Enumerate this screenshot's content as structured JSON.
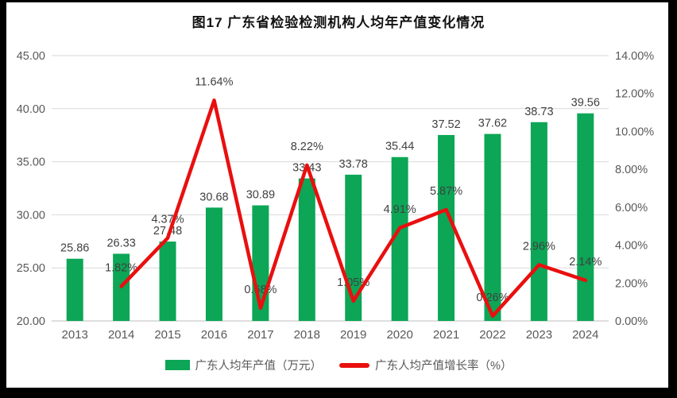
{
  "window": {
    "title": "图17  广东省检验检测机构人均年产值变化情况"
  },
  "colors": {
    "bar": "#0ca656",
    "line": "#e90f0f",
    "grid": "#d9d9d9",
    "axis_line": "#bfbfbf",
    "axis_text": "#595959",
    "label_text": "#404040",
    "frame": "#000000",
    "background": "#ffffff"
  },
  "chart_data": {
    "type": "bar",
    "subtype": "combo-bar-line",
    "title": "图17  广东省检验检测机构人均年产值变化情况",
    "categories": [
      "2013",
      "2014",
      "2015",
      "2016",
      "2017",
      "2018",
      "2019",
      "2020",
      "2021",
      "2022",
      "2023",
      "2024"
    ],
    "series": [
      {
        "name": "广东人均年产值（万元）",
        "type": "bar",
        "axis": "left",
        "values": [
          25.86,
          26.33,
          27.48,
          30.68,
          30.89,
          33.43,
          33.78,
          35.44,
          37.52,
          37.62,
          38.73,
          39.56
        ],
        "labels": [
          "25.86",
          "26.33",
          "27.48",
          "30.68",
          "30.89",
          "33.43",
          "33.78",
          "35.44",
          "37.52",
          "37.62",
          "38.73",
          "39.56"
        ]
      },
      {
        "name": "广东人均产值增长率（%）",
        "type": "line",
        "axis": "right",
        "values": [
          null,
          1.82,
          4.37,
          11.64,
          0.68,
          8.22,
          1.05,
          4.91,
          5.87,
          0.26,
          2.96,
          2.14
        ],
        "labels": [
          null,
          "1.82%",
          "4.37%",
          "11.64%",
          "0.68%",
          "8.22%",
          "1.05%",
          "4.91%",
          "5.87%",
          "0.26%",
          "2.96%",
          "2.14%"
        ]
      }
    ],
    "left_axis": {
      "min": 20,
      "max": 45,
      "ticks": [
        "20.00",
        "25.00",
        "30.00",
        "35.00",
        "40.00",
        "45.00"
      ]
    },
    "right_axis": {
      "min": 0,
      "max": 14,
      "ticks": [
        "0.00%",
        "2.00%",
        "4.00%",
        "6.00%",
        "8.00%",
        "10.00%",
        "12.00%",
        "14.00%"
      ]
    },
    "xlabel": "",
    "ylabel": "",
    "grid": true,
    "legend_position": "bottom"
  }
}
